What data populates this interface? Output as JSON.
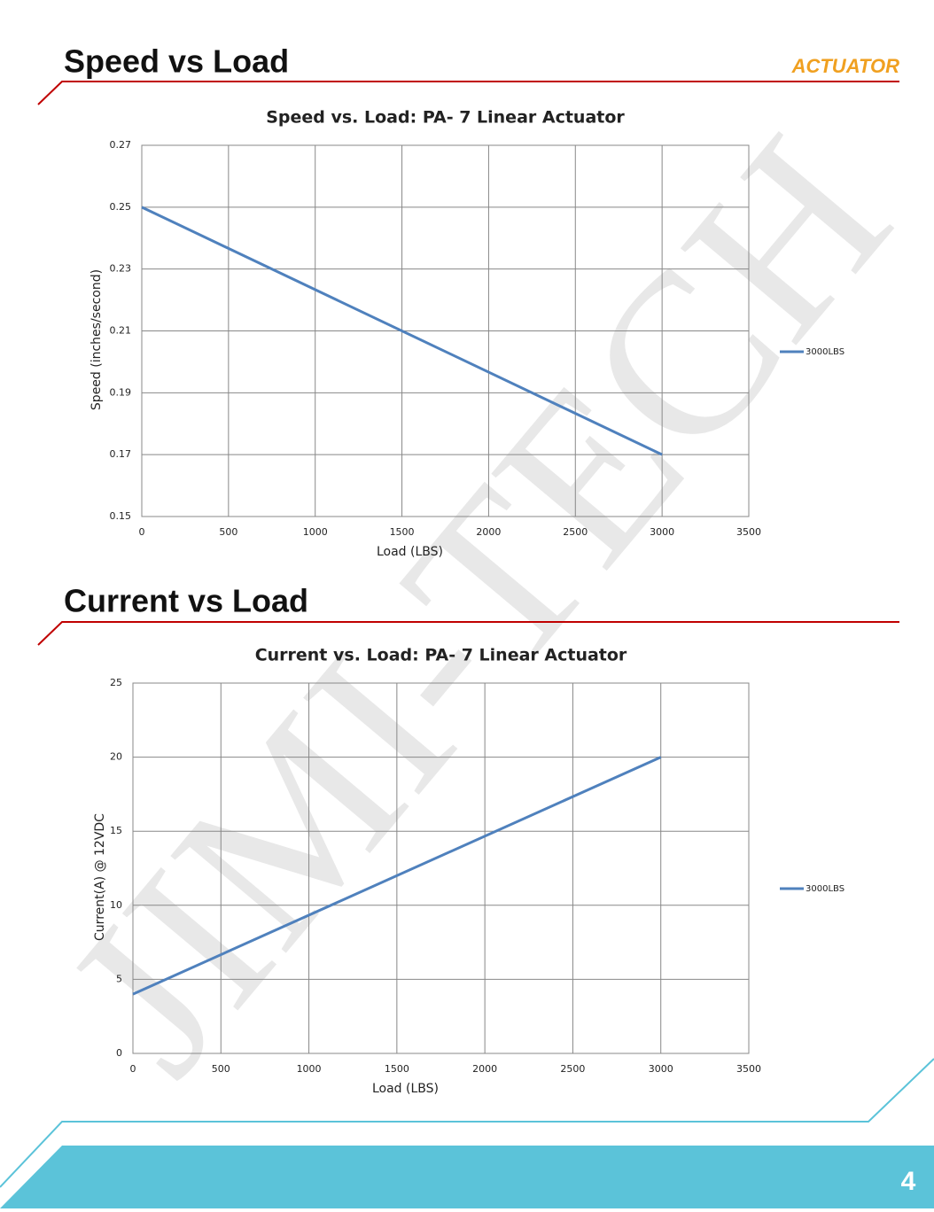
{
  "headings": [
    "Speed vs Load",
    "Current vs Load"
  ],
  "logo": "ACTUATOR",
  "watermark": "JIMI-TECH",
  "page_number": 4,
  "chart_data": [
    {
      "type": "line",
      "title": "Speed vs. Load: PA- 7  Linear Actuator",
      "x_label": "Load (LBS)",
      "y_label": "Speed (inches/second)",
      "x": [
        0,
        3000
      ],
      "series": [
        {
          "name": "3000LBS",
          "color": "#4f81bd",
          "values": [
            0.25,
            0.17
          ]
        }
      ],
      "xlim": [
        0,
        3500
      ],
      "xticks": [
        0,
        500,
        1000,
        1500,
        2000,
        2500,
        3000,
        3500
      ],
      "ylim": [
        0.15,
        0.27
      ],
      "yticks": [
        0.15,
        0.17,
        0.19,
        0.21,
        0.23,
        0.25,
        0.27
      ],
      "grid": true,
      "legend": "right"
    },
    {
      "type": "line",
      "title": "Current vs. Load: PA- 7  Linear Actuator",
      "x_label": "Load (LBS)",
      "y_label": "Current(A) @ 12VDC",
      "x": [
        0,
        3000
      ],
      "series": [
        {
          "name": "3000LBS",
          "color": "#4f81bd",
          "values": [
            4,
            20
          ]
        }
      ],
      "xlim": [
        0,
        3500
      ],
      "xticks": [
        0,
        500,
        1000,
        1500,
        2000,
        2500,
        3000,
        3500
      ],
      "ylim": [
        0,
        25
      ],
      "yticks": [
        0,
        5,
        10,
        15,
        20,
        25
      ],
      "grid": true,
      "legend": "right"
    }
  ]
}
